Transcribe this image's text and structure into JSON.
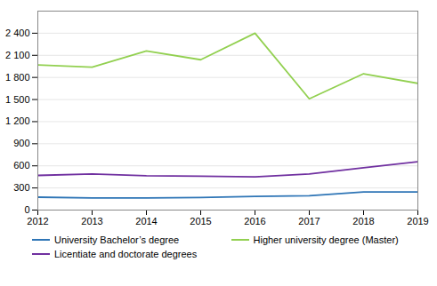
{
  "chart_data": {
    "type": "line",
    "x": [
      2012,
      2013,
      2014,
      2015,
      2016,
      2017,
      2018,
      2019
    ],
    "xlim": [
      2012,
      2019
    ],
    "xticks": [
      2012,
      2013,
      2014,
      2015,
      2016,
      2017,
      2018,
      2019
    ],
    "series": [
      {
        "name": "University Bachelor’s degree",
        "color": "#2e75b6",
        "values": [
          175,
          165,
          165,
          170,
          185,
          195,
          245,
          245
        ]
      },
      {
        "name": "Higher university degree (Master)",
        "color": "#92d050",
        "values": [
          1970,
          1940,
          2160,
          2040,
          2400,
          1510,
          1850,
          1720
        ]
      },
      {
        "name": "Licentiate and doctorate degrees",
        "color": "#7030a0",
        "values": [
          470,
          490,
          465,
          460,
          450,
          490,
          575,
          655
        ]
      }
    ],
    "ylim": [
      0,
      2700
    ],
    "yticks": [
      0,
      300,
      600,
      900,
      {
        "value": 1200,
        "label": "1 200"
      },
      {
        "value": 1500,
        "label": "1 500"
      },
      {
        "value": 1800,
        "label": "1 800"
      },
      {
        "value": 2100,
        "label": "2 100"
      },
      {
        "value": 2400,
        "label": "2 400"
      }
    ],
    "grid": true,
    "legend": "bottom"
  }
}
